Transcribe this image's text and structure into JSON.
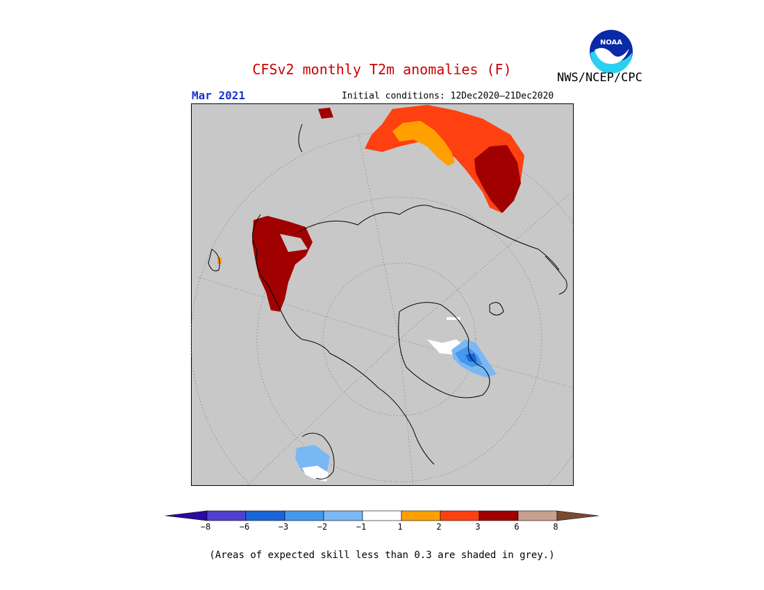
{
  "header": {
    "title": "CFSv2 monthly T2m anomalies (F)",
    "month": "Mar 2021",
    "initial_conditions": "Initial conditions: 12Dec2020–21Dec2020",
    "agency": "NWS/NCEP/CPC",
    "logo_text": "NOAA"
  },
  "colors": {
    "title": "#cc0000",
    "month": "#1a33cc",
    "background_grey": "#c8c8c8",
    "bins": [
      "#2a0aa0",
      "#5040d0",
      "#1a66d8",
      "#4499ee",
      "#7ab8f5",
      "#ffffff",
      "#ffa000",
      "#ff4010",
      "#a00000",
      "#c8a090",
      "#7a4a30"
    ]
  },
  "colorbar": {
    "ticks": [
      "−8",
      "−6",
      "−3",
      "−2",
      "−1",
      "1",
      "2",
      "3",
      "6",
      "8"
    ]
  },
  "footer": {
    "note": "(Areas of expected skill less than 0.3 are shaded in grey.)"
  }
}
